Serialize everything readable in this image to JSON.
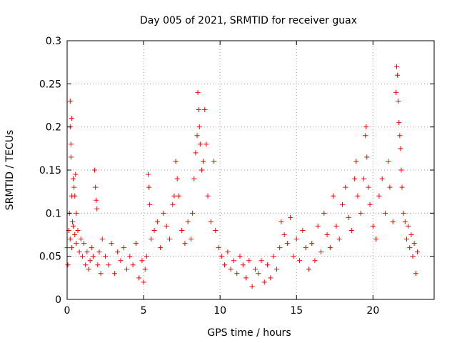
{
  "chart_data": {
    "type": "scatter",
    "title": "Day 005 of 2021, SRMTID for receiver guax",
    "xlabel": "GPS time / hours",
    "ylabel": "SRMTID / TECUs",
    "xlim": [
      0,
      24.0
    ],
    "ylim": [
      0,
      0.3
    ],
    "x_ticks": [
      "0",
      "5",
      "10",
      "15",
      "20"
    ],
    "y_ticks": [
      "0",
      "0.05",
      "0.1",
      "0.15",
      "0.2",
      "0.25",
      "0.3"
    ],
    "grid": true,
    "marker": "+",
    "color": "#ff0000",
    "series": [
      {
        "name": "SRMTID",
        "points": [
          [
            0.0,
            0.06
          ],
          [
            0.05,
            0.04
          ],
          [
            0.1,
            0.08
          ],
          [
            0.15,
            0.1
          ],
          [
            0.2,
            0.23
          ],
          [
            0.2,
            0.2
          ],
          [
            0.25,
            0.18
          ],
          [
            0.25,
            0.165
          ],
          [
            0.3,
            0.21
          ],
          [
            0.3,
            0.12
          ],
          [
            0.35,
            0.09
          ],
          [
            0.4,
            0.14
          ],
          [
            0.45,
            0.13
          ],
          [
            0.5,
            0.12
          ],
          [
            0.55,
            0.145
          ],
          [
            0.6,
            0.1
          ],
          [
            0.2,
            0.07
          ],
          [
            0.3,
            0.06
          ],
          [
            0.4,
            0.085
          ],
          [
            0.5,
            0.075
          ],
          [
            0.6,
            0.065
          ],
          [
            0.7,
            0.08
          ],
          [
            0.8,
            0.055
          ],
          [
            0.9,
            0.07
          ],
          [
            1.0,
            0.05
          ],
          [
            1.1,
            0.065
          ],
          [
            1.2,
            0.04
          ],
          [
            1.3,
            0.055
          ],
          [
            1.4,
            0.035
          ],
          [
            1.5,
            0.045
          ],
          [
            1.6,
            0.06
          ],
          [
            1.7,
            0.05
          ],
          [
            1.8,
            0.15
          ],
          [
            1.85,
            0.13
          ],
          [
            1.9,
            0.115
          ],
          [
            1.95,
            0.105
          ],
          [
            2.0,
            0.04
          ],
          [
            2.1,
            0.055
          ],
          [
            2.2,
            0.03
          ],
          [
            2.3,
            0.07
          ],
          [
            2.5,
            0.05
          ],
          [
            2.7,
            0.04
          ],
          [
            2.9,
            0.065
          ],
          [
            3.1,
            0.03
          ],
          [
            3.3,
            0.055
          ],
          [
            3.5,
            0.045
          ],
          [
            3.7,
            0.06
          ],
          [
            3.9,
            0.035
          ],
          [
            4.1,
            0.05
          ],
          [
            4.3,
            0.04
          ],
          [
            4.5,
            0.065
          ],
          [
            4.7,
            0.025
          ],
          [
            4.9,
            0.045
          ],
          [
            5.0,
            0.02
          ],
          [
            5.1,
            0.035
          ],
          [
            5.2,
            0.05
          ],
          [
            5.3,
            0.145
          ],
          [
            5.35,
            0.13
          ],
          [
            5.4,
            0.11
          ],
          [
            5.5,
            0.07
          ],
          [
            5.7,
            0.08
          ],
          [
            5.9,
            0.09
          ],
          [
            6.1,
            0.06
          ],
          [
            6.3,
            0.1
          ],
          [
            6.5,
            0.085
          ],
          [
            6.7,
            0.07
          ],
          [
            6.9,
            0.11
          ],
          [
            7.0,
            0.12
          ],
          [
            7.1,
            0.16
          ],
          [
            7.2,
            0.14
          ],
          [
            7.3,
            0.12
          ],
          [
            7.5,
            0.08
          ],
          [
            7.7,
            0.065
          ],
          [
            7.9,
            0.09
          ],
          [
            8.1,
            0.07
          ],
          [
            8.2,
            0.1
          ],
          [
            8.3,
            0.14
          ],
          [
            8.4,
            0.17
          ],
          [
            8.5,
            0.19
          ],
          [
            8.55,
            0.24
          ],
          [
            8.6,
            0.22
          ],
          [
            8.65,
            0.2
          ],
          [
            8.7,
            0.18
          ],
          [
            8.8,
            0.15
          ],
          [
            8.9,
            0.16
          ],
          [
            9.0,
            0.22
          ],
          [
            9.1,
            0.18
          ],
          [
            9.2,
            0.12
          ],
          [
            9.4,
            0.09
          ],
          [
            9.6,
            0.16
          ],
          [
            9.7,
            0.08
          ],
          [
            9.9,
            0.06
          ],
          [
            10.1,
            0.05
          ],
          [
            10.3,
            0.04
          ],
          [
            10.5,
            0.055
          ],
          [
            10.7,
            0.035
          ],
          [
            10.9,
            0.045
          ],
          [
            11.1,
            0.03
          ],
          [
            11.3,
            0.05
          ],
          [
            11.5,
            0.04
          ],
          [
            11.7,
            0.025
          ],
          [
            11.9,
            0.045
          ],
          [
            12.1,
            0.015
          ],
          [
            12.3,
            0.035
          ],
          [
            12.5,
            0.03
          ],
          [
            12.7,
            0.045
          ],
          [
            12.9,
            0.02
          ],
          [
            13.1,
            0.04
          ],
          [
            13.3,
            0.025
          ],
          [
            13.5,
            0.05
          ],
          [
            13.7,
            0.035
          ],
          [
            13.9,
            0.06
          ],
          [
            14.0,
            0.09
          ],
          [
            14.2,
            0.075
          ],
          [
            14.4,
            0.065
          ],
          [
            14.6,
            0.095
          ],
          [
            14.8,
            0.05
          ],
          [
            15.0,
            0.07
          ],
          [
            15.2,
            0.045
          ],
          [
            15.4,
            0.08
          ],
          [
            15.6,
            0.06
          ],
          [
            15.8,
            0.035
          ],
          [
            16.0,
            0.065
          ],
          [
            16.2,
            0.045
          ],
          [
            16.4,
            0.085
          ],
          [
            16.6,
            0.055
          ],
          [
            16.8,
            0.1
          ],
          [
            17.0,
            0.075
          ],
          [
            17.2,
            0.06
          ],
          [
            17.4,
            0.12
          ],
          [
            17.6,
            0.085
          ],
          [
            17.8,
            0.07
          ],
          [
            18.0,
            0.11
          ],
          [
            18.2,
            0.13
          ],
          [
            18.4,
            0.095
          ],
          [
            18.6,
            0.08
          ],
          [
            18.8,
            0.14
          ],
          [
            18.9,
            0.16
          ],
          [
            19.0,
            0.12
          ],
          [
            19.2,
            0.1
          ],
          [
            19.4,
            0.14
          ],
          [
            19.5,
            0.19
          ],
          [
            19.55,
            0.2
          ],
          [
            19.6,
            0.165
          ],
          [
            19.7,
            0.13
          ],
          [
            19.8,
            0.11
          ],
          [
            20.0,
            0.085
          ],
          [
            20.2,
            0.07
          ],
          [
            20.4,
            0.12
          ],
          [
            20.6,
            0.14
          ],
          [
            20.8,
            0.1
          ],
          [
            21.0,
            0.16
          ],
          [
            21.1,
            0.13
          ],
          [
            21.3,
            0.09
          ],
          [
            21.5,
            0.24
          ],
          [
            21.55,
            0.27
          ],
          [
            21.6,
            0.26
          ],
          [
            21.65,
            0.23
          ],
          [
            21.7,
            0.205
          ],
          [
            21.75,
            0.19
          ],
          [
            21.8,
            0.175
          ],
          [
            21.85,
            0.15
          ],
          [
            21.9,
            0.13
          ],
          [
            22.0,
            0.1
          ],
          [
            22.1,
            0.09
          ],
          [
            22.2,
            0.07
          ],
          [
            22.3,
            0.085
          ],
          [
            22.4,
            0.06
          ],
          [
            22.5,
            0.075
          ],
          [
            22.6,
            0.05
          ],
          [
            22.7,
            0.065
          ],
          [
            22.8,
            0.03
          ],
          [
            22.9,
            0.055
          ]
        ]
      }
    ]
  }
}
